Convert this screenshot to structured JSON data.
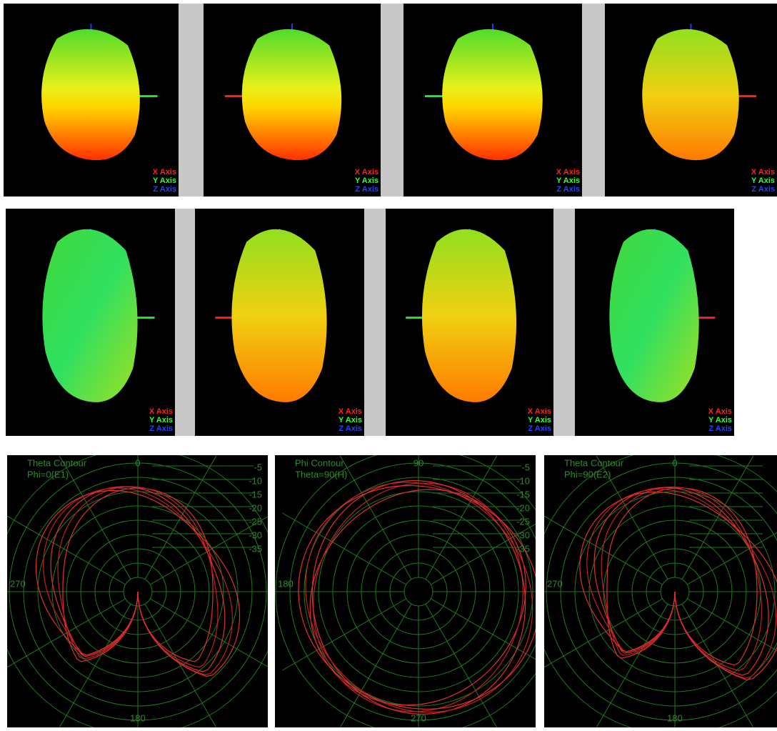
{
  "panels3d": [
    {
      "labels": [
        "X Axis",
        "Y Axis",
        "Z Axis"
      ]
    },
    {
      "labels": [
        "X Axis",
        "Y Axis",
        "Z Axis"
      ]
    },
    {
      "labels": [
        "X Axis",
        "Y Axis",
        "Z Axis"
      ]
    },
    {
      "labels": [
        "X Axis",
        "Y Axis",
        "Z Axis"
      ]
    },
    {
      "labels": [
        "X Axis",
        "Y Axis",
        "Z Axis"
      ]
    },
    {
      "labels": [
        "X Axis",
        "Y Axis",
        "Z Axis"
      ]
    },
    {
      "labels": [
        "X Axis",
        "Y Axis",
        "Z Axis"
      ]
    },
    {
      "labels": [
        "X Axis",
        "Y Axis",
        "Z Axis"
      ]
    }
  ],
  "polar": [
    {
      "title": "Theta Contour",
      "subtitle": "Phi=0(E1)",
      "top": "0",
      "left": "270",
      "bottom": "180",
      "ring_labels": [
        "-5",
        "-10",
        "-15",
        "-20",
        "-25",
        "-30",
        "-35"
      ]
    },
    {
      "title": "Phi Contour",
      "subtitle": "Theta=90(H)",
      "top": "90",
      "left": "180",
      "bottom": "270",
      "ring_labels": [
        "-5",
        "-10",
        "-15",
        "-20",
        "-25",
        "-30",
        "-35"
      ]
    },
    {
      "title": "Theta Contour",
      "subtitle": "Phi=90(E2)",
      "top": "0",
      "left": "270",
      "bottom": "180",
      "ring_labels": []
    }
  ]
}
